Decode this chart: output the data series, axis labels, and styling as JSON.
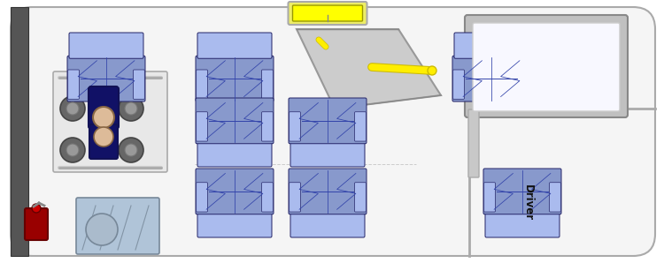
{
  "bg_color": "#ffffff",
  "van_fill": "#f5f5f5",
  "van_outline": "#aaaaaa",
  "van_lw": 2.0,
  "wall_fill": "#555555",
  "wall_outline": "#333333",
  "seat_main": "#8899cc",
  "seat_light": "#aabbee",
  "seat_dark": "#3344aa",
  "seat_outline": "#222266",
  "ramp_fill": "#cccccc",
  "ramp_outline": "#999999",
  "yellow": "#ffee00",
  "yellow_dark": "#ccbb00",
  "yellow_tube_fill": "#ddcc00",
  "fire_red": "#990000",
  "fire_bright": "#cc2222",
  "wc_frame": "#aaaaaa",
  "wc_person_body": "#111166",
  "wc_skin": "#ddbb99",
  "dash_fill": "#c0c0c0",
  "dash_outline": "#888888",
  "driver_bg": "#9999dd",
  "driver_text": "#111111",
  "lift_blue": "#aabbcc",
  "lift_outline": "#778899"
}
